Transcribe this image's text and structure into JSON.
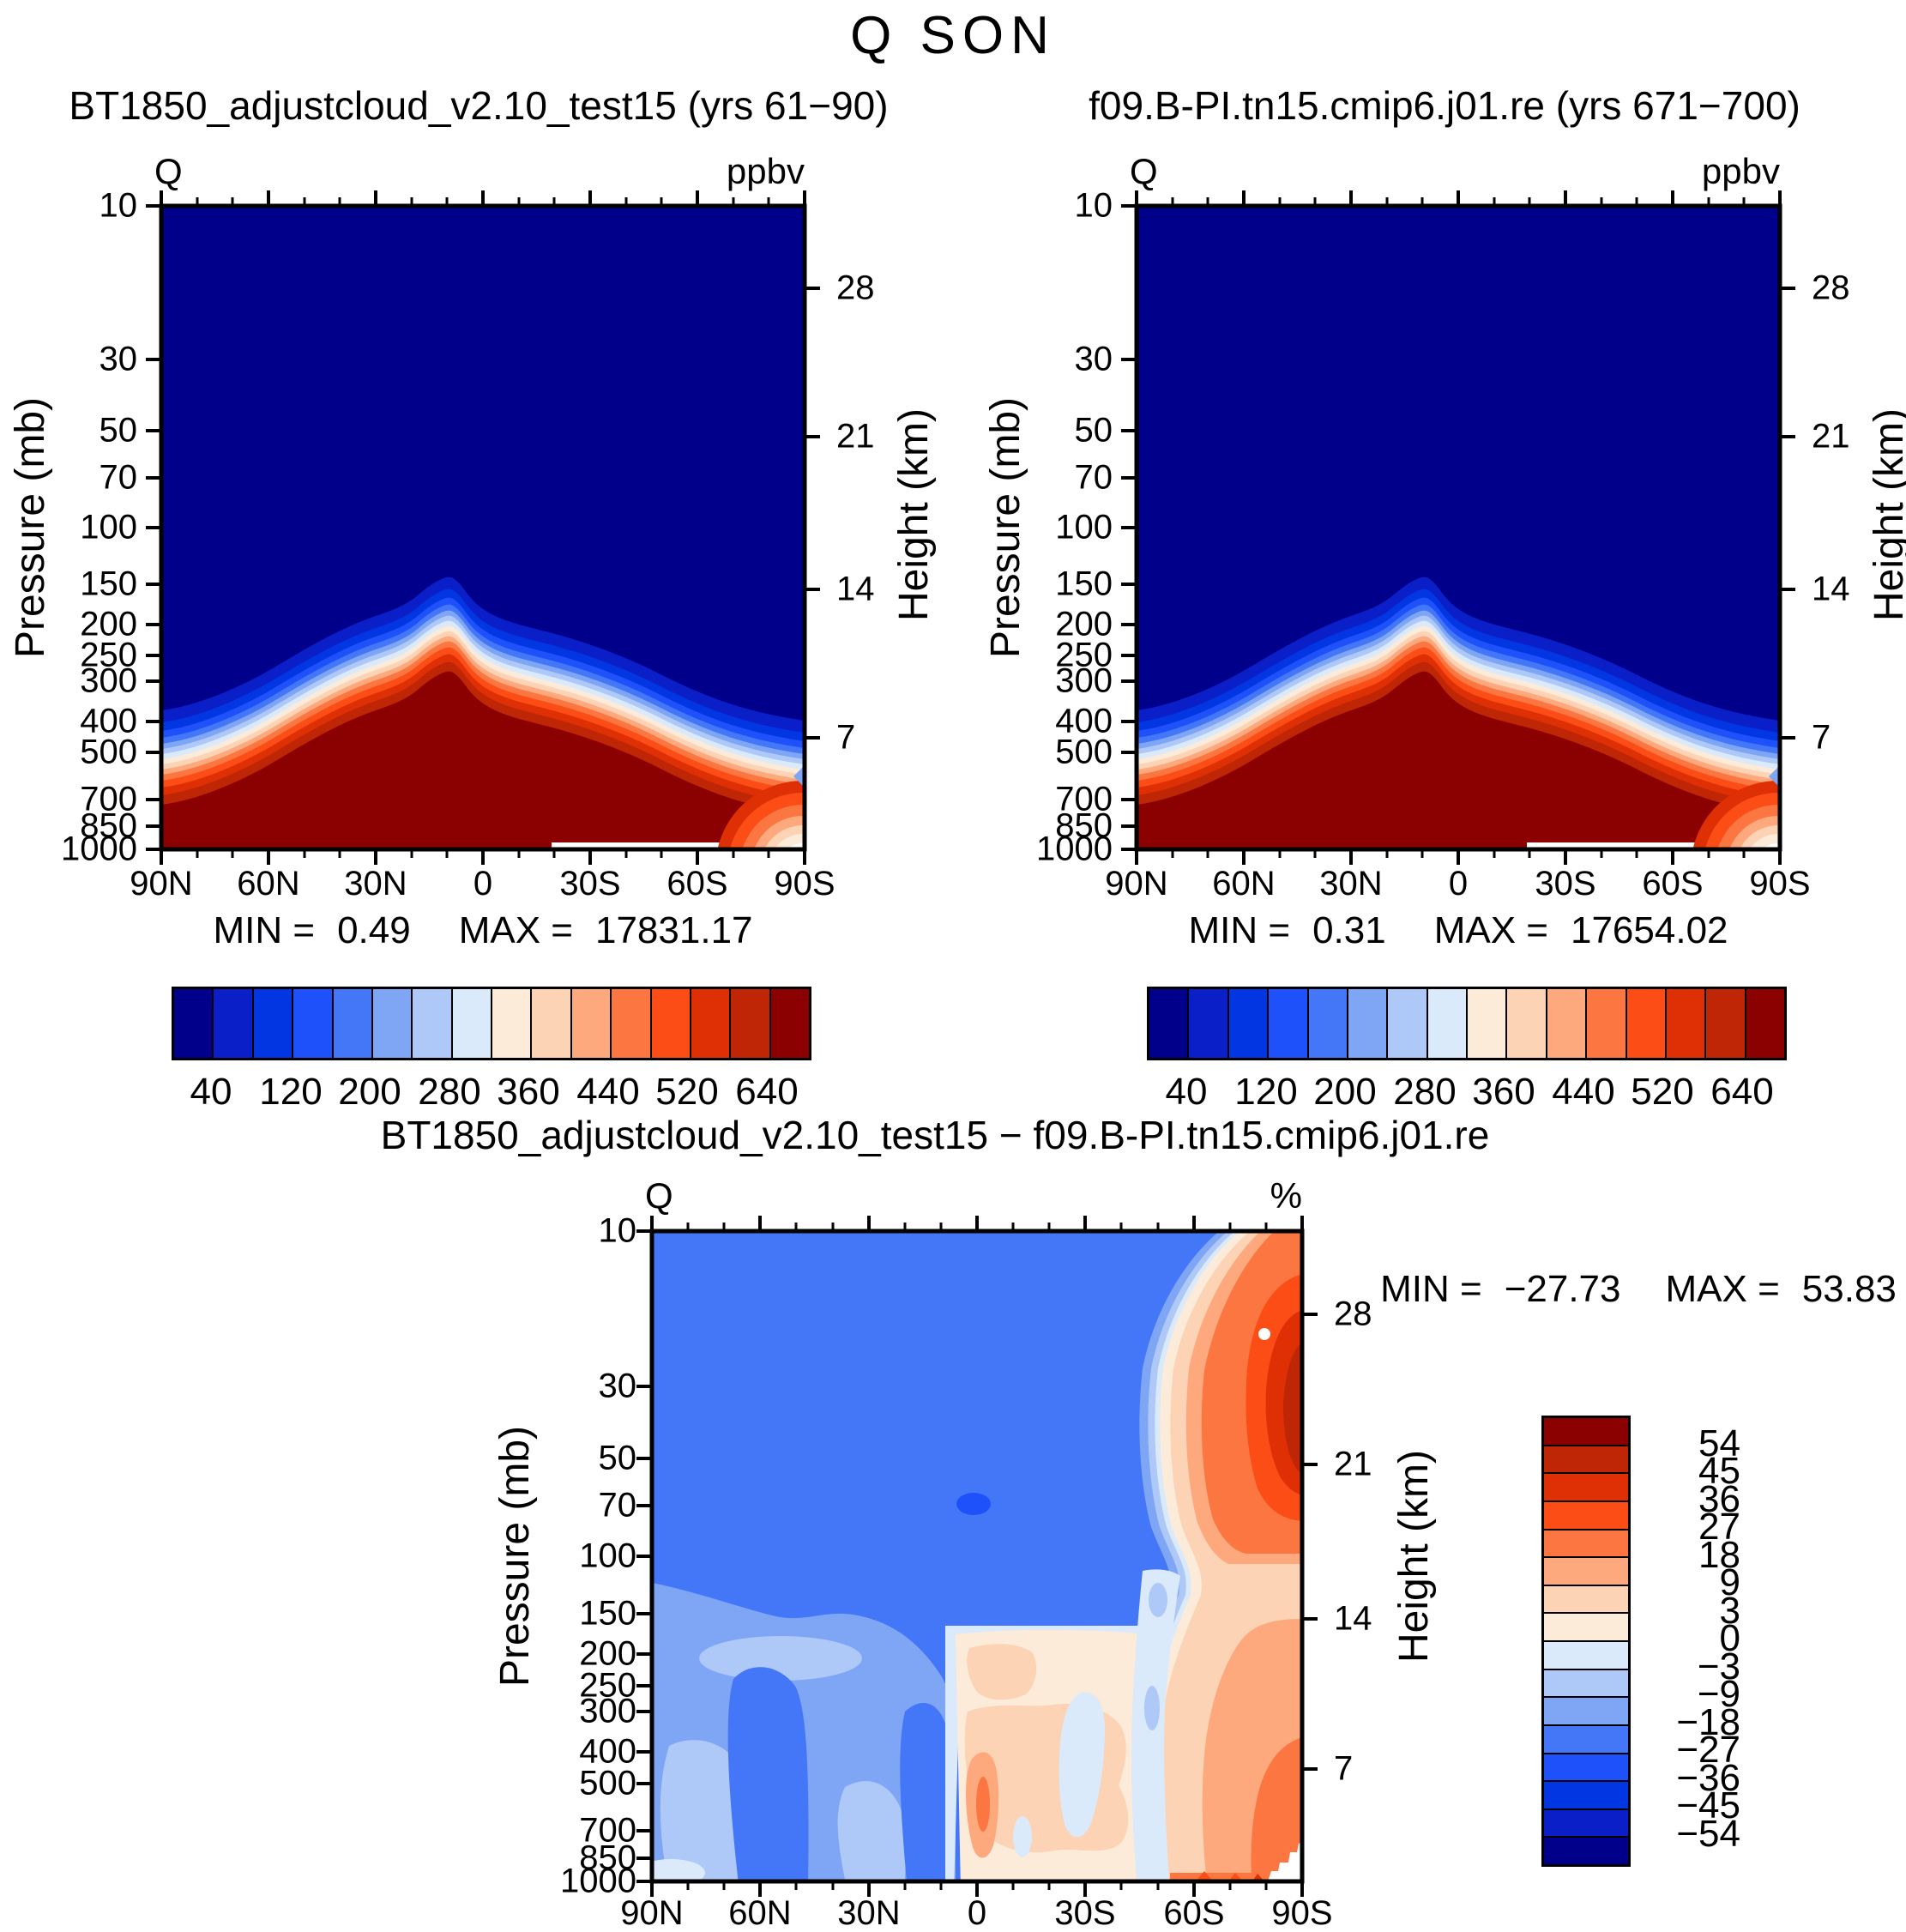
{
  "page": {
    "title": "Q SON"
  },
  "panels": {
    "top_left": {
      "title": "BT1850_adjustcloud_v2.10_test15 (yrs 61−90)",
      "field_label": "Q",
      "units": "ppbv",
      "stats": {
        "min_label": "MIN =",
        "min": "0.49",
        "max_label": "MAX =",
        "max": "17831.17"
      }
    },
    "top_right": {
      "title": "f09.B-PI.tn15.cmip6.j01.re (yrs 671−700)",
      "field_label": "Q",
      "units": "ppbv",
      "stats": {
        "min_label": "MIN =",
        "min": "0.31",
        "max_label": "MAX =",
        "max": "17654.02"
      }
    },
    "bottom": {
      "title": "BT1850_adjustcloud_v2.10_test15 − f09.B-PI.tn15.cmip6.j01.re",
      "field_label": "Q",
      "units": "%",
      "stats": {
        "min_label": "MIN =",
        "min": "−27.73",
        "max_label": "MAX =",
        "max": "53.83"
      }
    }
  },
  "axes": {
    "pressure_label": "Pressure (mb)",
    "height_label": "Height (km)",
    "pressure_ticks": [
      "10",
      "30",
      "50",
      "70",
      "100",
      "150",
      "200",
      "250",
      "300",
      "400",
      "500",
      "700",
      "850",
      "1000"
    ],
    "height_ticks": [
      "28",
      "21",
      "14",
      "7"
    ],
    "lat_ticks": [
      "90N",
      "60N",
      "30N",
      "0",
      "30S",
      "60S",
      "90S"
    ]
  },
  "colorbars": {
    "q_labels": [
      "40",
      "120",
      "200",
      "280",
      "360",
      "440",
      "520",
      "640"
    ],
    "diff_labels": [
      "54",
      "45",
      "36",
      "27",
      "18",
      "9",
      "3",
      "0",
      "−3",
      "−9",
      "−18",
      "−27",
      "−36",
      "−45",
      "−54"
    ],
    "palette": [
      "#00008B",
      "#0A1FC8",
      "#0336E3",
      "#1F51FA",
      "#4377F8",
      "#7FA5F5",
      "#AEC8F8",
      "#DBEAFB",
      "#FDEBDA",
      "#FCD3B4",
      "#FDA87D",
      "#FB7640",
      "#FB4D15",
      "#DF2F05",
      "#BE2605",
      "#8B0000"
    ],
    "palette_reversed": [
      "#8B0000",
      "#BE2605",
      "#DF2F05",
      "#FB4D15",
      "#FB7640",
      "#FDA87D",
      "#FCD3B4",
      "#FDEBDA",
      "#DBEAFB",
      "#AEC8F8",
      "#7FA5F5",
      "#4377F8",
      "#1F51FA",
      "#0336E3",
      "#0A1FC8",
      "#00008B"
    ]
  },
  "chart_data": [
    {
      "type": "heatmap",
      "panel": "top_left",
      "title": "BT1850_adjustcloud_v2.10_test15 (yrs 61−90)",
      "variable": "Q",
      "season": "SON",
      "units": "ppbv",
      "x_ticks": [
        "90N",
        "60N",
        "30N",
        "0",
        "30S",
        "60S",
        "90S"
      ],
      "ylabel": "Pressure (mb)",
      "y_scale": "log",
      "y_ticks": [
        10,
        30,
        50,
        70,
        100,
        150,
        200,
        250,
        300,
        400,
        500,
        700,
        850,
        1000
      ],
      "y2label": "Height (km)",
      "y2_ticks": [
        28,
        21,
        14,
        7
      ],
      "colorbar_labels": [
        40,
        120,
        200,
        280,
        360,
        440,
        520,
        640
      ],
      "n_color_cells": 16,
      "min": 0.49,
      "max": 17831.17,
      "description": "Moist troposphere (>640 ppbv, dark red) below a tropopause that peaks just north of the equator near 300 mb and slopes down to ~600-700 mb at both poles; dry stratosphere (<40 ppbv, dark navy) above; thin rainbow transition band between; dry (near-white) notch at the surface near 90S."
    },
    {
      "type": "heatmap",
      "panel": "top_right",
      "title": "f09.B-PI.tn15.cmip6.j01.re (yrs 671−700)",
      "variable": "Q",
      "season": "SON",
      "units": "ppbv",
      "x_ticks": [
        "90N",
        "60N",
        "30N",
        "0",
        "30S",
        "60S",
        "90S"
      ],
      "ylabel": "Pressure (mb)",
      "y_scale": "log",
      "y_ticks": [
        10,
        30,
        50,
        70,
        100,
        150,
        200,
        250,
        300,
        400,
        500,
        700,
        850,
        1000
      ],
      "y2label": "Height (km)",
      "y2_ticks": [
        28,
        21,
        14,
        7
      ],
      "colorbar_labels": [
        40,
        120,
        200,
        280,
        360,
        440,
        520,
        640
      ],
      "n_color_cells": 16,
      "min": 0.31,
      "max": 17654.02,
      "description": "Same structure as left panel: dark-red moist troposphere under navy dry stratosphere, transition band peaking near the equator, dry surface notch near 90S."
    },
    {
      "type": "heatmap",
      "panel": "bottom_difference",
      "title": "BT1850_adjustcloud_v2.10_test15 − f09.B-PI.tn15.cmip6.j01.re",
      "variable": "Q",
      "season": "SON",
      "units": "%",
      "x_ticks": [
        "90N",
        "60N",
        "30N",
        "0",
        "30S",
        "60S",
        "90S"
      ],
      "ylabel": "Pressure (mb)",
      "y_scale": "log",
      "y_ticks": [
        10,
        30,
        50,
        70,
        100,
        150,
        200,
        250,
        300,
        400,
        500,
        700,
        850,
        1000
      ],
      "y2label": "Height (km)",
      "y2_ticks": [
        28,
        21,
        14,
        7
      ],
      "contour_levels": [
        -54,
        -45,
        -36,
        -27,
        -18,
        -9,
        -3,
        0,
        3,
        9,
        18,
        27,
        36,
        45,
        54
      ],
      "min": -27.73,
      "max": 53.83,
      "description": "Stratosphere mostly −18 to −27% (medium blue) with the minimum ≈−27.7% in a small darker oval near 70 mb over the equator; strong positive anomalies (up to ≈54%) over 60S–90S through the whole column, maximal near 30 mb; weak positive (0–18%) anomalies in the tropical–subtropical troposphere south of the equator with a small +18–27% core near 400–500 mb; −3 to −18% (light blues) in the northern troposphere."
    }
  ]
}
